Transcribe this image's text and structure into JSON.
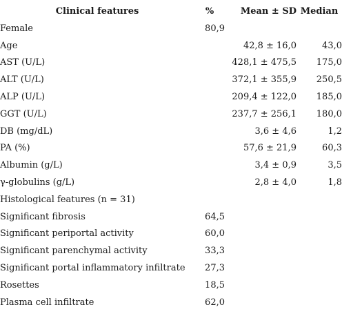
{
  "table": {
    "headers": {
      "feature": "Clinical features",
      "pct": "%",
      "mean_sd": "Mean ± SD",
      "median": "Median"
    },
    "rows": [
      {
        "feature": "Female",
        "pct": "80,9",
        "mean_sd": "",
        "median": ""
      },
      {
        "feature": "Age",
        "pct": "",
        "mean_sd": "42,8 ± 16,0",
        "median": "43,0"
      },
      {
        "feature": "AST (U/L)",
        "pct": "",
        "mean_sd": "428,1 ± 475,5",
        "median": "175,0"
      },
      {
        "feature": "ALT (U/L)",
        "pct": "",
        "mean_sd": "372,1 ± 355,9",
        "median": "250,5"
      },
      {
        "feature": "ALP (U/L)",
        "pct": "",
        "mean_sd": "209,4 ± 122,0",
        "median": "185,0"
      },
      {
        "feature": "GGT (U/L)",
        "pct": "",
        "mean_sd": "237,7 ± 256,1",
        "median": "180,0"
      },
      {
        "feature": "DB (mg/dL)",
        "pct": "",
        "mean_sd": "3,6 ± 4,6",
        "median": "1,2"
      },
      {
        "feature": "PA (%)",
        "pct": "",
        "mean_sd": "57,6 ± 21,9",
        "median": "60,3"
      },
      {
        "feature": "Albumin (g/L)",
        "pct": "",
        "mean_sd": "3,4 ± 0,9",
        "median": "3,5"
      },
      {
        "feature": "γ-globulins (g/L)",
        "pct": "",
        "mean_sd": "2,8 ± 4,0",
        "median": "1,8"
      },
      {
        "feature": "Histological features (n = 31)",
        "pct": "",
        "mean_sd": "",
        "median": ""
      },
      {
        "feature": "Significant fibrosis",
        "pct": "64,5",
        "mean_sd": "",
        "median": ""
      },
      {
        "feature": "Significant periportal activity",
        "pct": "60,0",
        "mean_sd": "",
        "median": ""
      },
      {
        "feature": "Significant parenchymal activity",
        "pct": "33,3",
        "mean_sd": "",
        "median": ""
      },
      {
        "feature": "Significant portal inflammatory infiltrate",
        "pct": "27,3",
        "mean_sd": "",
        "median": ""
      },
      {
        "feature": "Rosettes",
        "pct": "18,5",
        "mean_sd": "",
        "median": ""
      },
      {
        "feature": "Plasma cell infiltrate",
        "pct": "62,0",
        "mean_sd": "",
        "median": ""
      }
    ]
  }
}
